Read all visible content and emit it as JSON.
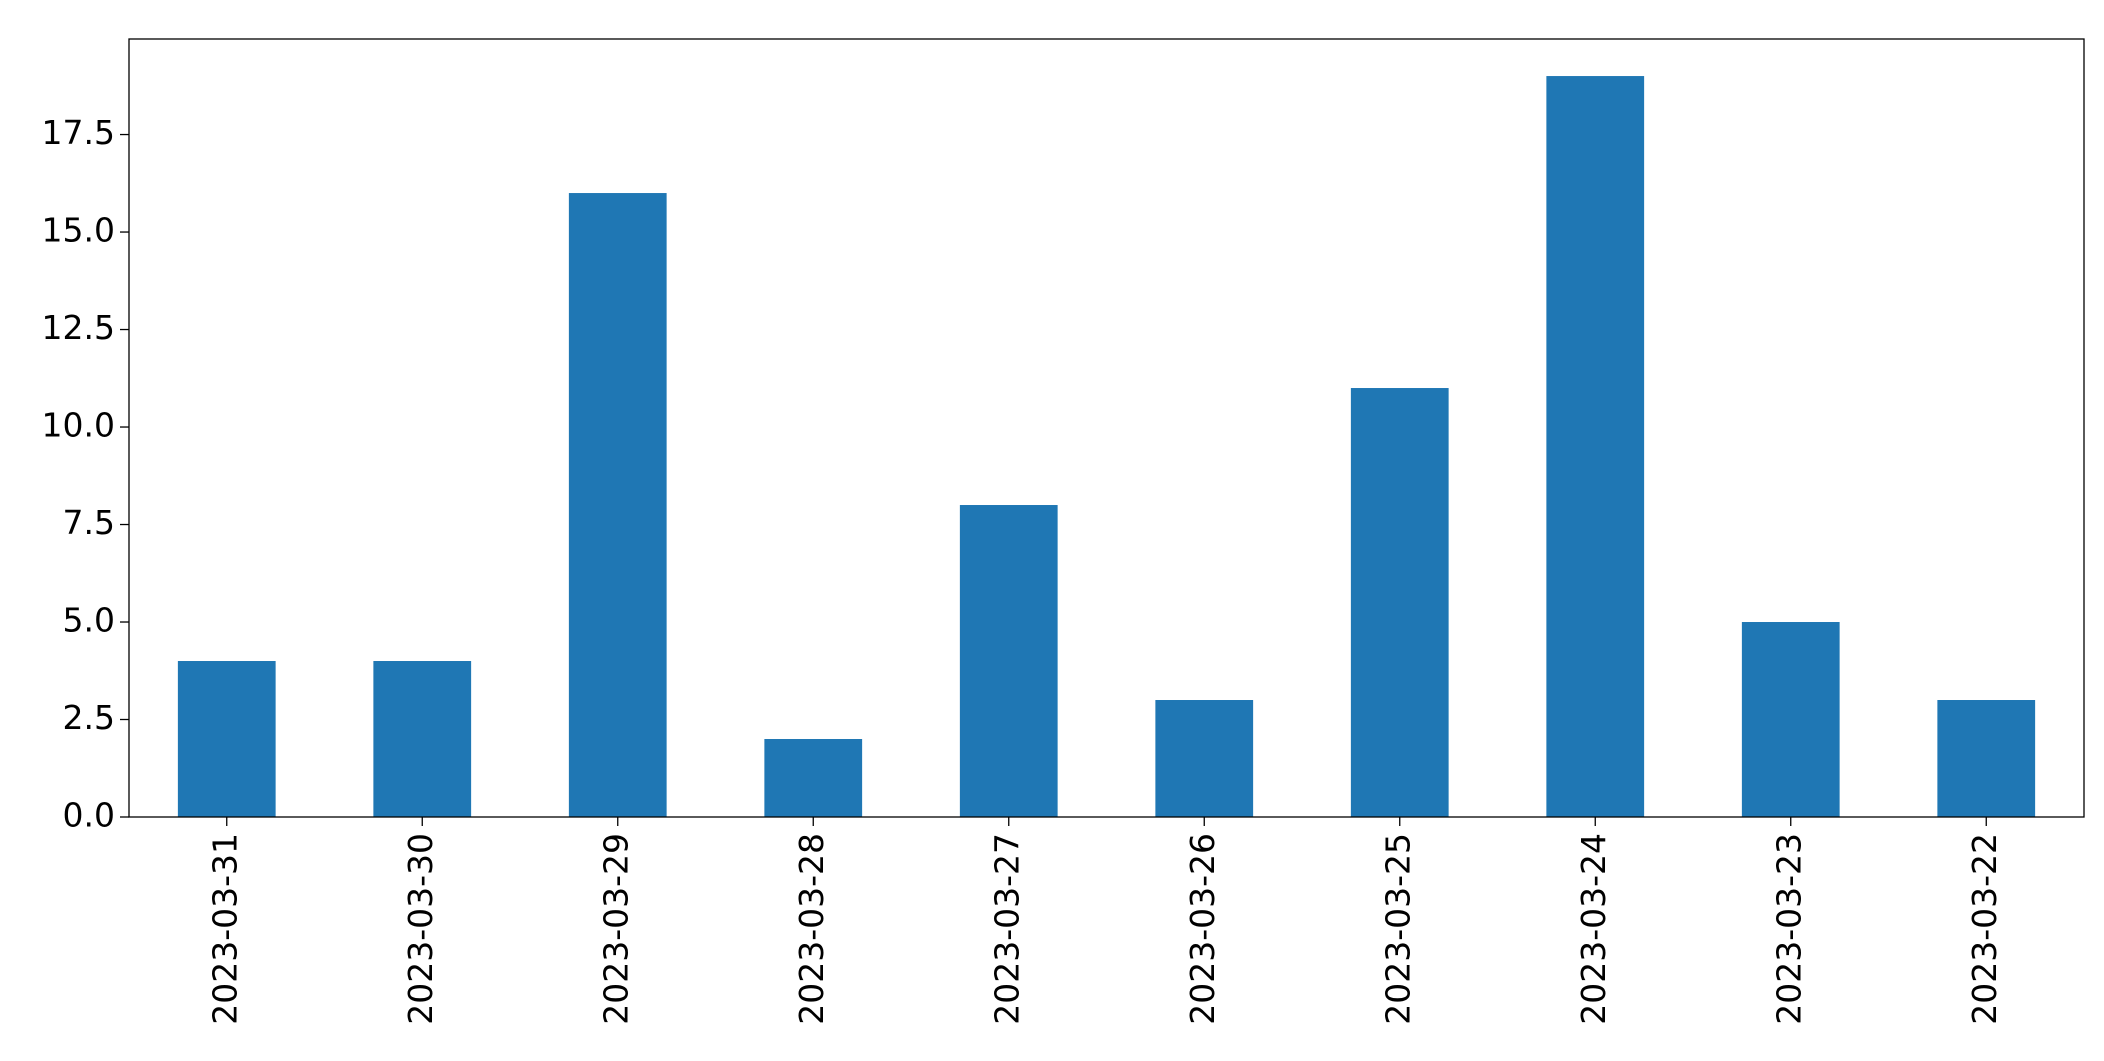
{
  "chart_data": {
    "type": "bar",
    "categories": [
      "2023-03-31",
      "2023-03-30",
      "2023-03-29",
      "2023-03-28",
      "2023-03-27",
      "2023-03-26",
      "2023-03-25",
      "2023-03-24",
      "2023-03-23",
      "2023-03-22"
    ],
    "values": [
      4,
      4,
      16,
      2,
      8,
      3,
      11,
      19,
      5,
      3
    ],
    "color": "#1f77b4",
    "ylim": [
      0,
      19.95
    ],
    "yticks": [
      {
        "value": 0,
        "label": "0.0"
      },
      2.5,
      {
        "value": 5,
        "label": "5.0"
      },
      7.5,
      {
        "value": 10,
        "label": "10.0"
      },
      12.5,
      {
        "value": 15,
        "label": "15.0"
      },
      17.5
    ],
    "grid": false
  }
}
